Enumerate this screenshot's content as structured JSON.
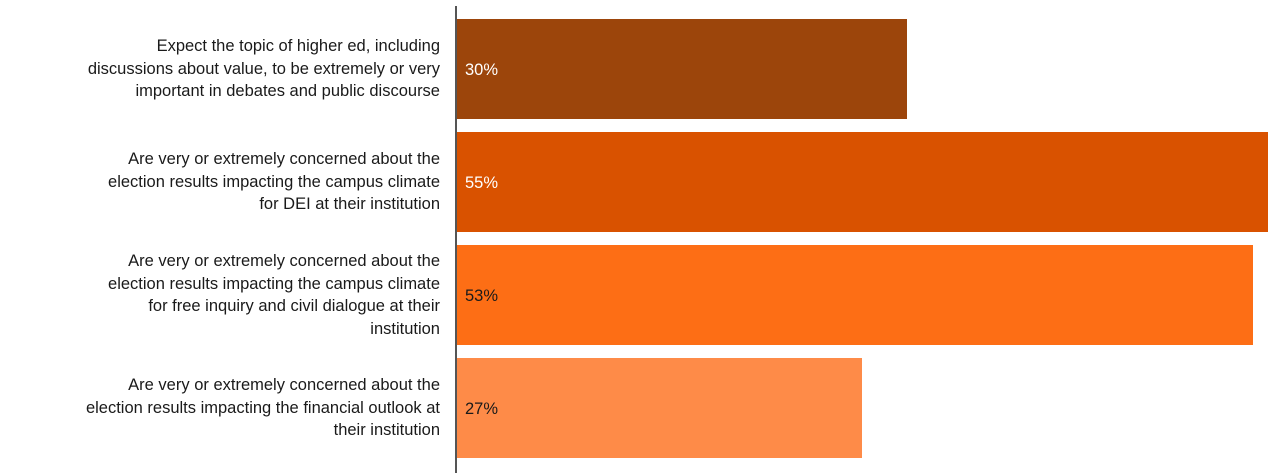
{
  "chart_data": {
    "type": "bar",
    "orientation": "horizontal",
    "categories": [
      "Expect the topic of higher ed, including discussions about value, to be extremely or very important in debates and public discourse",
      "Are very or extremely concerned about the election results impacting the campus climate for DEI at their institution",
      "Are very or extremely concerned about the election results impacting the campus climate for free inquiry and civil dialogue at their institution",
      "Are very or extremely concerned about the election results impacting the financial outlook at their institution"
    ],
    "category_lines": [
      [
        "Expect the topic of higher ed, including",
        "discussions about value, to be extremely or very",
        "important in debates and public discourse"
      ],
      [
        "Are very or extremely concerned about the",
        "election results impacting the campus climate",
        "for DEI at their institution"
      ],
      [
        "Are very or extremely concerned about the",
        "election results impacting the campus climate",
        "for free inquiry and civil dialogue at their",
        "institution"
      ],
      [
        "Are very or extremely concerned about the",
        "election results impacting the financial outlook at",
        "their institution"
      ]
    ],
    "values": [
      30,
      55,
      53,
      27
    ],
    "value_labels": [
      "30%",
      "55%",
      "53%",
      "27%"
    ],
    "unit": "%",
    "xlim": [
      0,
      54
    ],
    "grid": false,
    "legend": "none",
    "colors": [
      "#9c450b",
      "#d95200",
      "#fd6e15",
      "#fe8b48"
    ],
    "label_colors": [
      "#ffffff",
      "#ffffff",
      "#1a1a1a",
      "#1a1a1a"
    ]
  }
}
